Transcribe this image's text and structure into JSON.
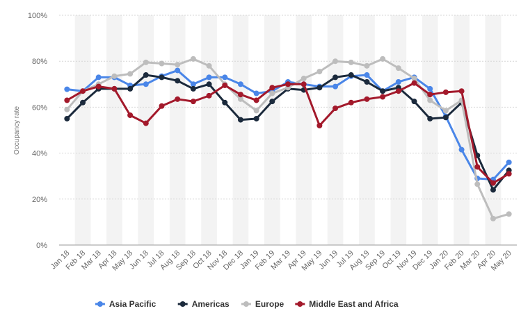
{
  "chart_data": {
    "type": "line",
    "title": "",
    "xlabel": "",
    "ylabel": "Occupancy rate",
    "ylim": [
      0,
      100
    ],
    "yticks": [
      "0%",
      "20%",
      "40%",
      "60%",
      "80%",
      "100%"
    ],
    "grid": true,
    "legend_position": "bottom",
    "categories": [
      "Jan 18",
      "Feb 18",
      "Mar 18",
      "Apr 18",
      "May 18",
      "Jun 18",
      "Jul 18",
      "Aug 18",
      "Sep 18",
      "Oct 18",
      "Nov 18",
      "Dec 18",
      "Jan 19",
      "Feb 19",
      "Mar 19",
      "Apr 19",
      "May 19",
      "Jun 19",
      "Jul 19",
      "Aug 19",
      "Sep 19",
      "Oct 19",
      "Nov 19",
      "Dec 19",
      "Jan 20",
      "Feb 20",
      "Mar 20",
      "Apr 20",
      "May 20"
    ],
    "series": [
      {
        "name": "Asia Pacific",
        "color": "#4a86e8",
        "values": [
          67.8,
          67,
          73,
          73,
          69.5,
          70,
          73.5,
          76,
          70,
          73,
          73,
          70,
          66,
          67,
          71,
          70,
          69,
          69,
          73.5,
          74,
          67,
          71,
          73,
          68,
          56,
          41.5,
          29,
          28.5,
          36
        ]
      },
      {
        "name": "Americas",
        "color": "#1b2a3c",
        "values": [
          55,
          62,
          68,
          68,
          68,
          74,
          73,
          71.5,
          68,
          70,
          62,
          54.5,
          55,
          62.5,
          68,
          67.5,
          68.5,
          73,
          74,
          71,
          67,
          68.5,
          62.5,
          55,
          55.5,
          62,
          39,
          24,
          32.5
        ]
      },
      {
        "name": "Europe",
        "color": "#bdbdbd",
        "values": [
          59,
          67,
          70,
          73.5,
          74.5,
          79.5,
          79,
          78.5,
          81,
          78,
          70,
          63.5,
          58.5,
          66,
          68.5,
          72.5,
          75.5,
          80,
          79.5,
          78,
          81,
          77,
          72.5,
          63,
          58.5,
          63,
          26.5,
          11.5,
          13.5
        ]
      },
      {
        "name": "Middle East and Africa",
        "color": "#a3192b",
        "values": [
          63,
          67,
          69,
          68,
          56.5,
          53,
          60.5,
          63.5,
          62.5,
          65,
          69.5,
          65.5,
          63,
          68.5,
          70,
          70,
          52,
          59.5,
          62,
          63.5,
          64.5,
          67,
          70.5,
          65.5,
          66.5,
          67,
          34,
          27,
          31
        ]
      }
    ]
  }
}
